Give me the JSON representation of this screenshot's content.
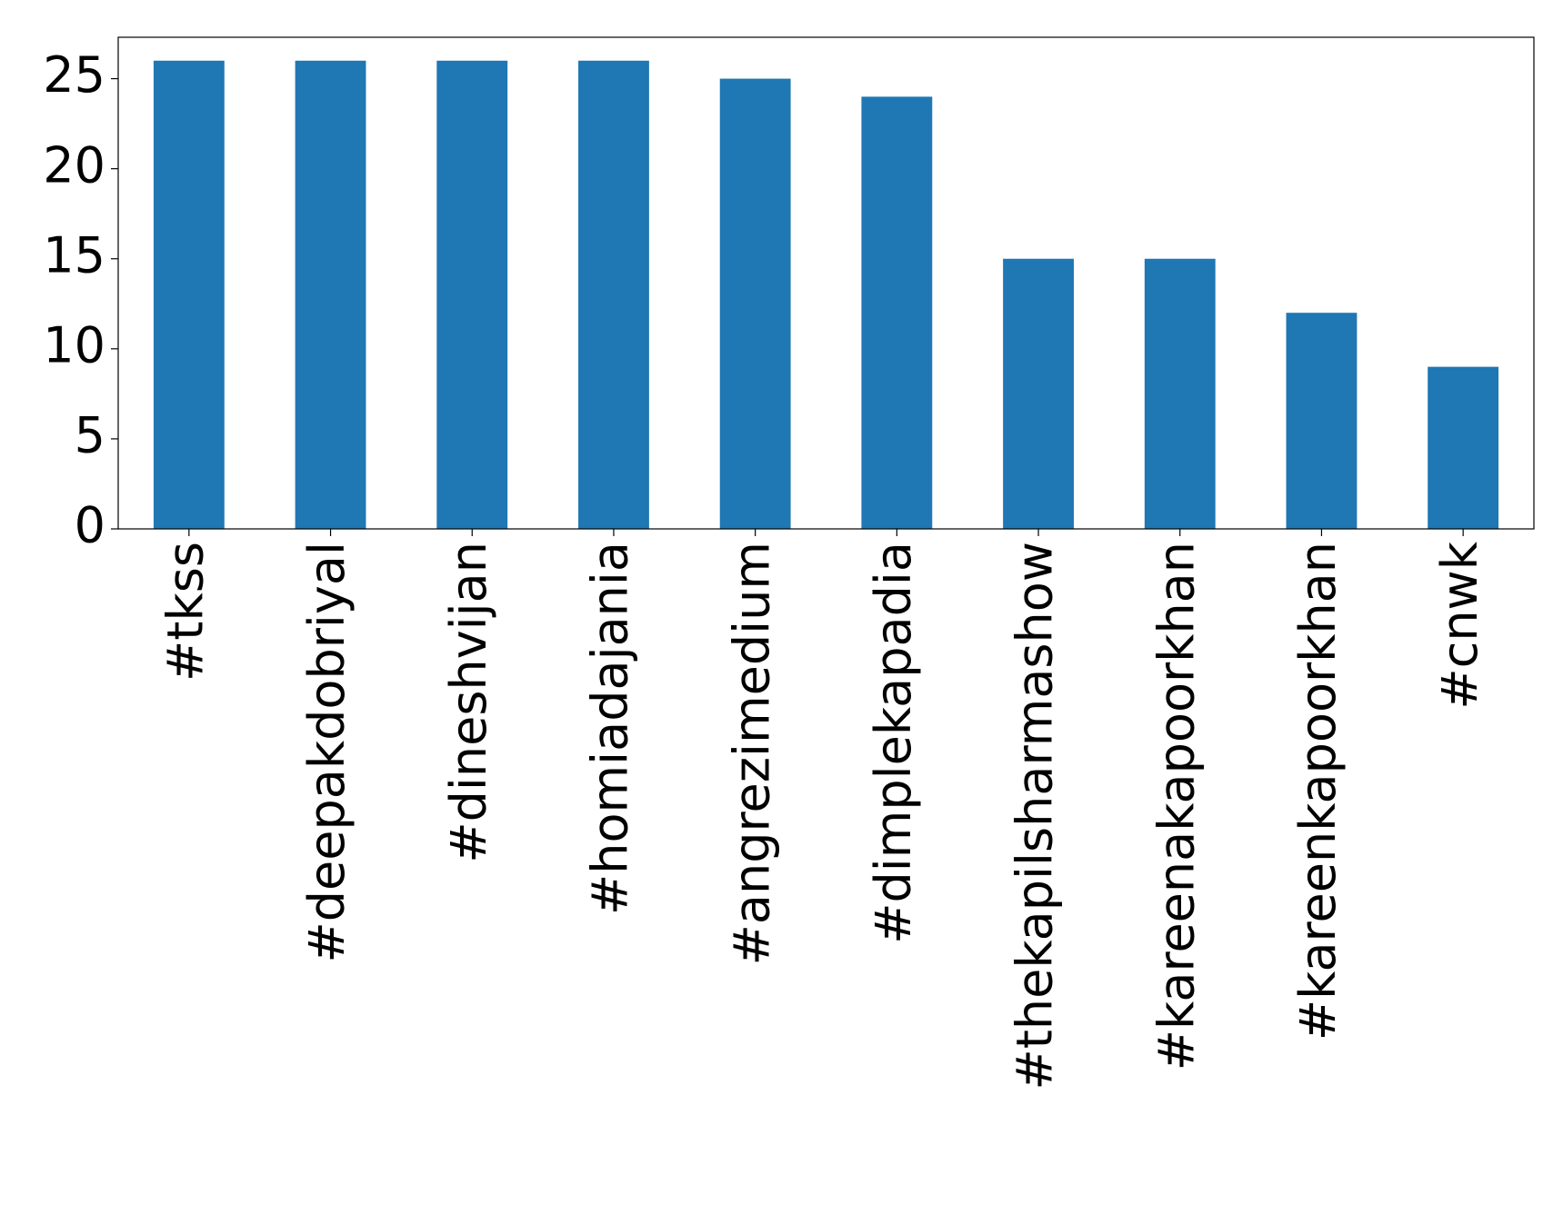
{
  "chart_data": {
    "type": "bar",
    "categories": [
      "#tkss",
      "#deepakdobriyal",
      "#dineshvijan",
      "#homiadajania",
      "#angrezimedium",
      "#dimplekapadia",
      "#thekapilsharmashow",
      "#kareenakapoorkhan",
      "#kareenkapoorkhan",
      "#cnwk"
    ],
    "values": [
      26,
      26,
      26,
      26,
      25,
      24,
      15,
      15,
      12,
      9
    ],
    "color": "#1f77b4",
    "ylim": [
      0,
      27.3
    ],
    "yticks": [
      0,
      5,
      10,
      15,
      20,
      25
    ],
    "grid": false
  }
}
